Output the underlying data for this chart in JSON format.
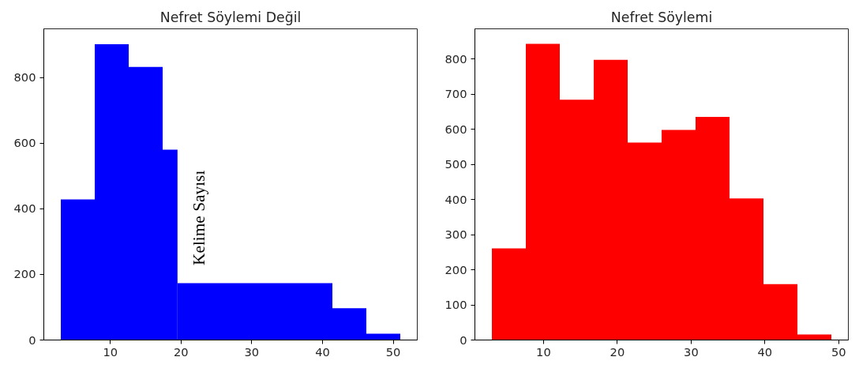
{
  "chart_data": [
    {
      "type": "histogram",
      "title": "Nefret Söylemi Değil",
      "bins": [
        3,
        7.8,
        12.6,
        17.4,
        19.5,
        41.4,
        46.2,
        51
      ],
      "values": [
        428,
        901,
        832,
        580,
        173,
        97,
        19
      ],
      "color": "#0000ff",
      "xlim": [
        0.6,
        53.4
      ],
      "ylim": [
        0,
        948
      ],
      "xticks": [
        10,
        20,
        30,
        40,
        50
      ],
      "yticks": [
        0,
        200,
        400,
        600,
        800
      ],
      "grid": false,
      "annotations": [
        "Kelime Sayısı"
      ]
    },
    {
      "type": "histogram",
      "title": "Nefret Söylemi",
      "bins": [
        3,
        7.6,
        12.2,
        16.8,
        21.4,
        26,
        30.6,
        35.2,
        39.8,
        44.4,
        49
      ],
      "values": [
        261,
        843,
        684,
        798,
        562,
        598,
        635,
        403,
        159,
        16
      ],
      "color": "#ff0000",
      "xlim": [
        0.7,
        51.3
      ],
      "ylim": [
        0,
        886
      ],
      "xticks": [
        10,
        20,
        30,
        40,
        50
      ],
      "yticks": [
        0,
        100,
        200,
        300,
        400,
        500,
        600,
        700,
        800
      ],
      "grid": false
    }
  ]
}
